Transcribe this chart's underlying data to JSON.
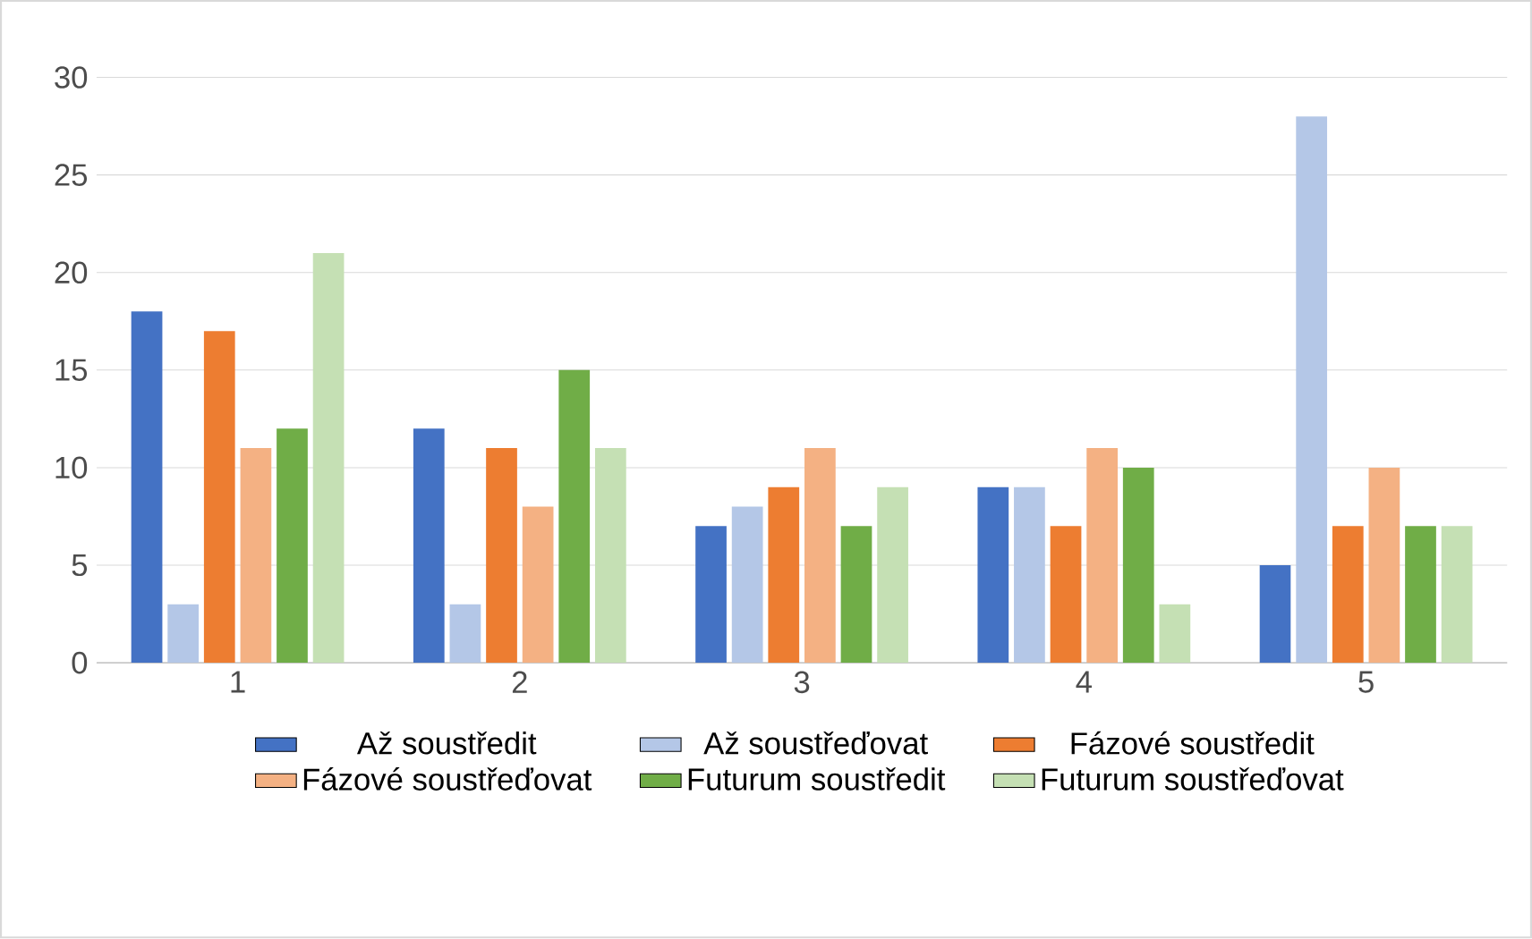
{
  "chart_data": {
    "type": "bar",
    "categories": [
      "1",
      "2",
      "3",
      "4",
      "5"
    ],
    "series": [
      {
        "name": "Až soustředit",
        "color": "#4472c4",
        "values": [
          18,
          12,
          7,
          9,
          5
        ]
      },
      {
        "name": "Až soustřeďovat",
        "color": "#b4c7e7",
        "values": [
          3,
          3,
          8,
          9,
          28
        ]
      },
      {
        "name": "Fázové soustředit",
        "color": "#ed7d31",
        "values": [
          17,
          11,
          9,
          7,
          7
        ]
      },
      {
        "name": "Fázové soustřeďovat",
        "color": "#f4b183",
        "values": [
          11,
          8,
          11,
          11,
          10
        ]
      },
      {
        "name": "Futurum soustředit",
        "color": "#70ad47",
        "values": [
          12,
          15,
          7,
          10,
          7
        ]
      },
      {
        "name": "Futurum soustřeďovat",
        "color": "#c5e0b4",
        "values": [
          21,
          11,
          9,
          3,
          7
        ]
      }
    ],
    "ylim": [
      0,
      30
    ],
    "yticks": [
      0,
      5,
      10,
      15,
      20,
      25,
      30
    ],
    "grid": "y",
    "legend": "bottom"
  }
}
